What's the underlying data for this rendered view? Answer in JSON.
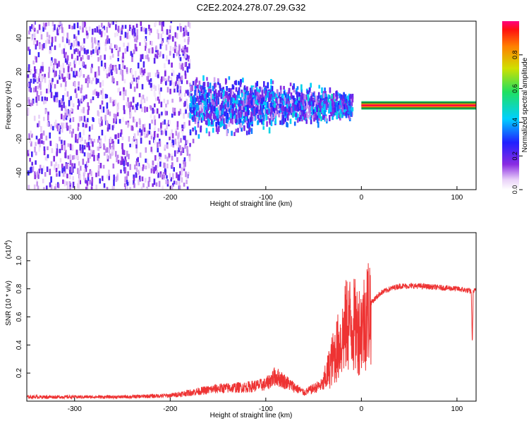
{
  "title": "C2E2.2024.278.07.29.G32",
  "chart_data": [
    {
      "type": "heatmap",
      "xlabel": "Height of straight line (km)",
      "ylabel": "Frequency (Hz)",
      "xlim": [
        -350,
        120
      ],
      "ylim": [
        -50,
        50
      ],
      "xticks": [
        -300,
        -200,
        -100,
        0,
        100
      ],
      "yticks": [
        -40,
        -20,
        0,
        20,
        40
      ],
      "colorbar": {
        "label": "Normalized spectral amplitude",
        "range": [
          0.0,
          1.0
        ],
        "ticks": [
          0.0,
          0.2,
          0.4,
          0.6,
          0.8
        ],
        "colormap": "rainbow (violet to red)"
      },
      "colors": {
        "low": "#8a2be2",
        "mid": "#00e0ff",
        "high": "#ff0000",
        "line": "#00c060"
      },
      "features": [
        {
          "x_range": [
            -350,
            -180
          ],
          "frequency_spread": [
            -50,
            50
          ],
          "amplitude": [
            0.05,
            0.25
          ]
        },
        {
          "x_range": [
            -180,
            -10
          ],
          "frequency_spread": [
            -25,
            25
          ],
          "amplitude": [
            0.15,
            0.45
          ]
        },
        {
          "x_range": [
            0,
            120
          ],
          "frequency_spread": [
            -1,
            1
          ],
          "amplitude": [
            0.9,
            1.0
          ]
        }
      ]
    },
    {
      "type": "line",
      "xlabel": "Height of straight line (km)",
      "ylabel": "SNR (10 * v/v)",
      "multiplier": "(x10",
      "multiplier_exp": "4",
      "multiplier_close": ")",
      "xlim": [
        -350,
        120
      ],
      "ylim": [
        0,
        1.2
      ],
      "xticks": [
        -300,
        -200,
        -100,
        0,
        100
      ],
      "yticks": [
        0.2,
        0.4,
        0.6,
        0.8,
        1.0
      ],
      "series": [
        {
          "color": "#ee3333",
          "x": [
            -350,
            -300,
            -250,
            -200,
            -170,
            -150,
            -120,
            -100,
            -90,
            -80,
            -60,
            -40,
            -30,
            -20,
            -15,
            -10,
            -5,
            0,
            10,
            20,
            30,
            40,
            60,
            80,
            100,
            110,
            115,
            116,
            117,
            120
          ],
          "y": [
            0.03,
            0.03,
            0.03,
            0.04,
            0.07,
            0.09,
            0.1,
            0.12,
            0.18,
            0.14,
            0.06,
            0.12,
            0.3,
            0.45,
            0.55,
            0.55,
            0.52,
            0.52,
            0.7,
            0.77,
            0.8,
            0.82,
            0.82,
            0.81,
            0.8,
            0.79,
            0.78,
            0.4,
            0.78,
            0.79
          ]
        }
      ]
    }
  ]
}
